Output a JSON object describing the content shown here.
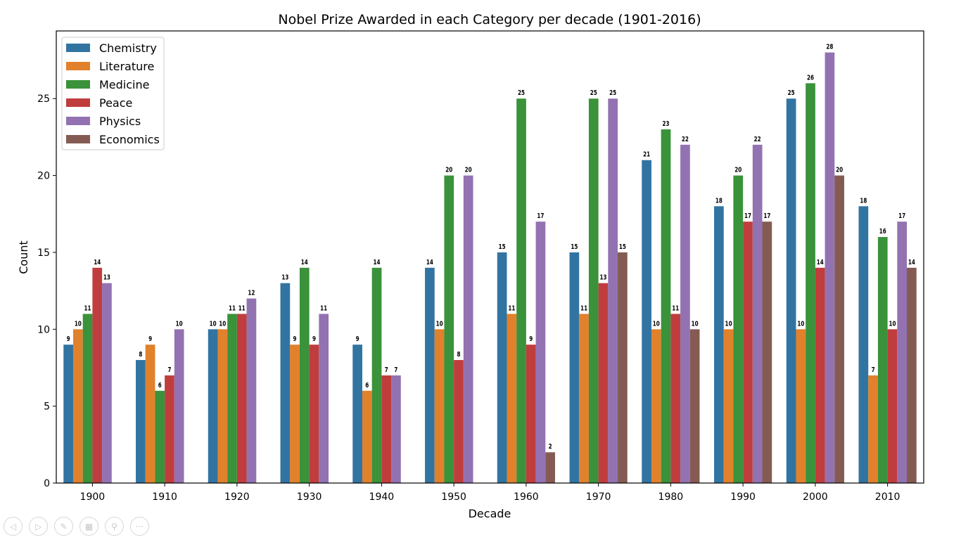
{
  "chart_data": {
    "type": "bar",
    "title": "Nobel Prize Awarded in each Category per decade (1901-2016)",
    "xlabel": "Decade",
    "ylabel": "Count",
    "ylim": [
      0,
      29.4
    ],
    "yticks": [
      0,
      5,
      10,
      15,
      20,
      25
    ],
    "grid": false,
    "legend_placement": "top-left",
    "categories": [
      "1900",
      "1910",
      "1920",
      "1930",
      "1940",
      "1950",
      "1960",
      "1970",
      "1980",
      "1990",
      "2000",
      "2010"
    ],
    "series": [
      {
        "name": "Chemistry",
        "color": "#3274a1",
        "values": [
          9,
          8,
          10,
          13,
          9,
          14,
          15,
          15,
          21,
          18,
          25,
          18
        ]
      },
      {
        "name": "Literature",
        "color": "#e1812c",
        "values": [
          10,
          9,
          10,
          9,
          6,
          10,
          11,
          11,
          10,
          10,
          10,
          7
        ]
      },
      {
        "name": "Medicine",
        "color": "#3a923a",
        "values": [
          11,
          6,
          11,
          14,
          14,
          20,
          25,
          25,
          23,
          20,
          26,
          16
        ]
      },
      {
        "name": "Peace",
        "color": "#c03d3e",
        "values": [
          14,
          7,
          11,
          9,
          7,
          8,
          9,
          13,
          11,
          17,
          14,
          10
        ]
      },
      {
        "name": "Physics",
        "color": "#9372b2",
        "values": [
          13,
          10,
          12,
          11,
          7,
          20,
          17,
          25,
          22,
          22,
          28,
          17
        ]
      },
      {
        "name": "Economics",
        "color": "#845b53",
        "values": [
          null,
          null,
          null,
          null,
          null,
          null,
          2,
          15,
          10,
          17,
          20,
          14
        ]
      }
    ]
  },
  "toolbar": {
    "icons": [
      "previous-icon",
      "next-icon",
      "pen-icon",
      "slides-icon",
      "zoom-icon",
      "more-icon"
    ]
  }
}
